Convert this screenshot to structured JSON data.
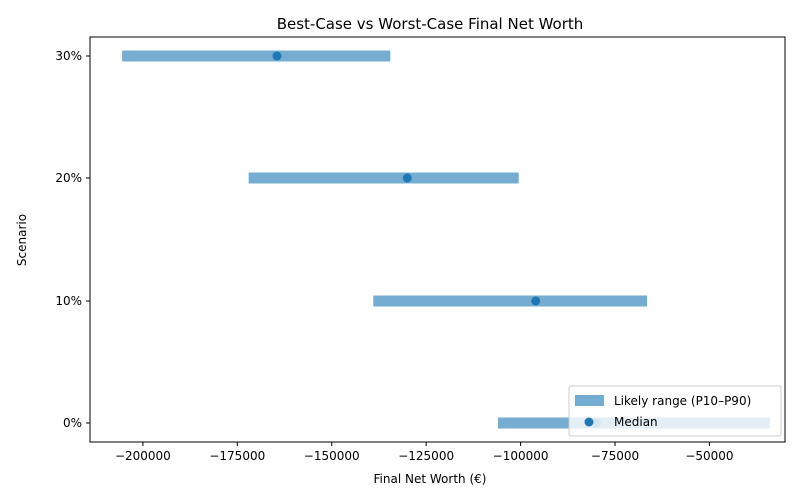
{
  "chart_data": {
    "type": "range",
    "title": "Best-Case vs Worst-Case Final Net Worth",
    "xlabel": "Final Net Worth (€)",
    "ylabel": "Scenario",
    "xlim": [
      -214000,
      -30000
    ],
    "x_ticks": [
      -200000,
      -175000,
      -150000,
      -125000,
      -100000,
      -75000,
      -50000
    ],
    "x_tick_labels": [
      "−200000",
      "−175000",
      "−150000",
      "−125000",
      "−100000",
      "−75000",
      "−50000"
    ],
    "categories": [
      "0%",
      "10%",
      "20%",
      "30%"
    ],
    "series": [
      {
        "name": "Likely range (P10–P90)",
        "kind": "range",
        "low": [
          -106000,
          -139000,
          -172000,
          -205500
        ],
        "high": [
          -34000,
          -66500,
          -100500,
          -134500
        ]
      },
      {
        "name": "Median",
        "kind": "point",
        "values": [
          -80000,
          -96000,
          -130000,
          -164500
        ]
      }
    ],
    "colors": {
      "range": "#75acd1",
      "median": "#1f77b4"
    },
    "legend_position": "lower right",
    "grid": false
  }
}
